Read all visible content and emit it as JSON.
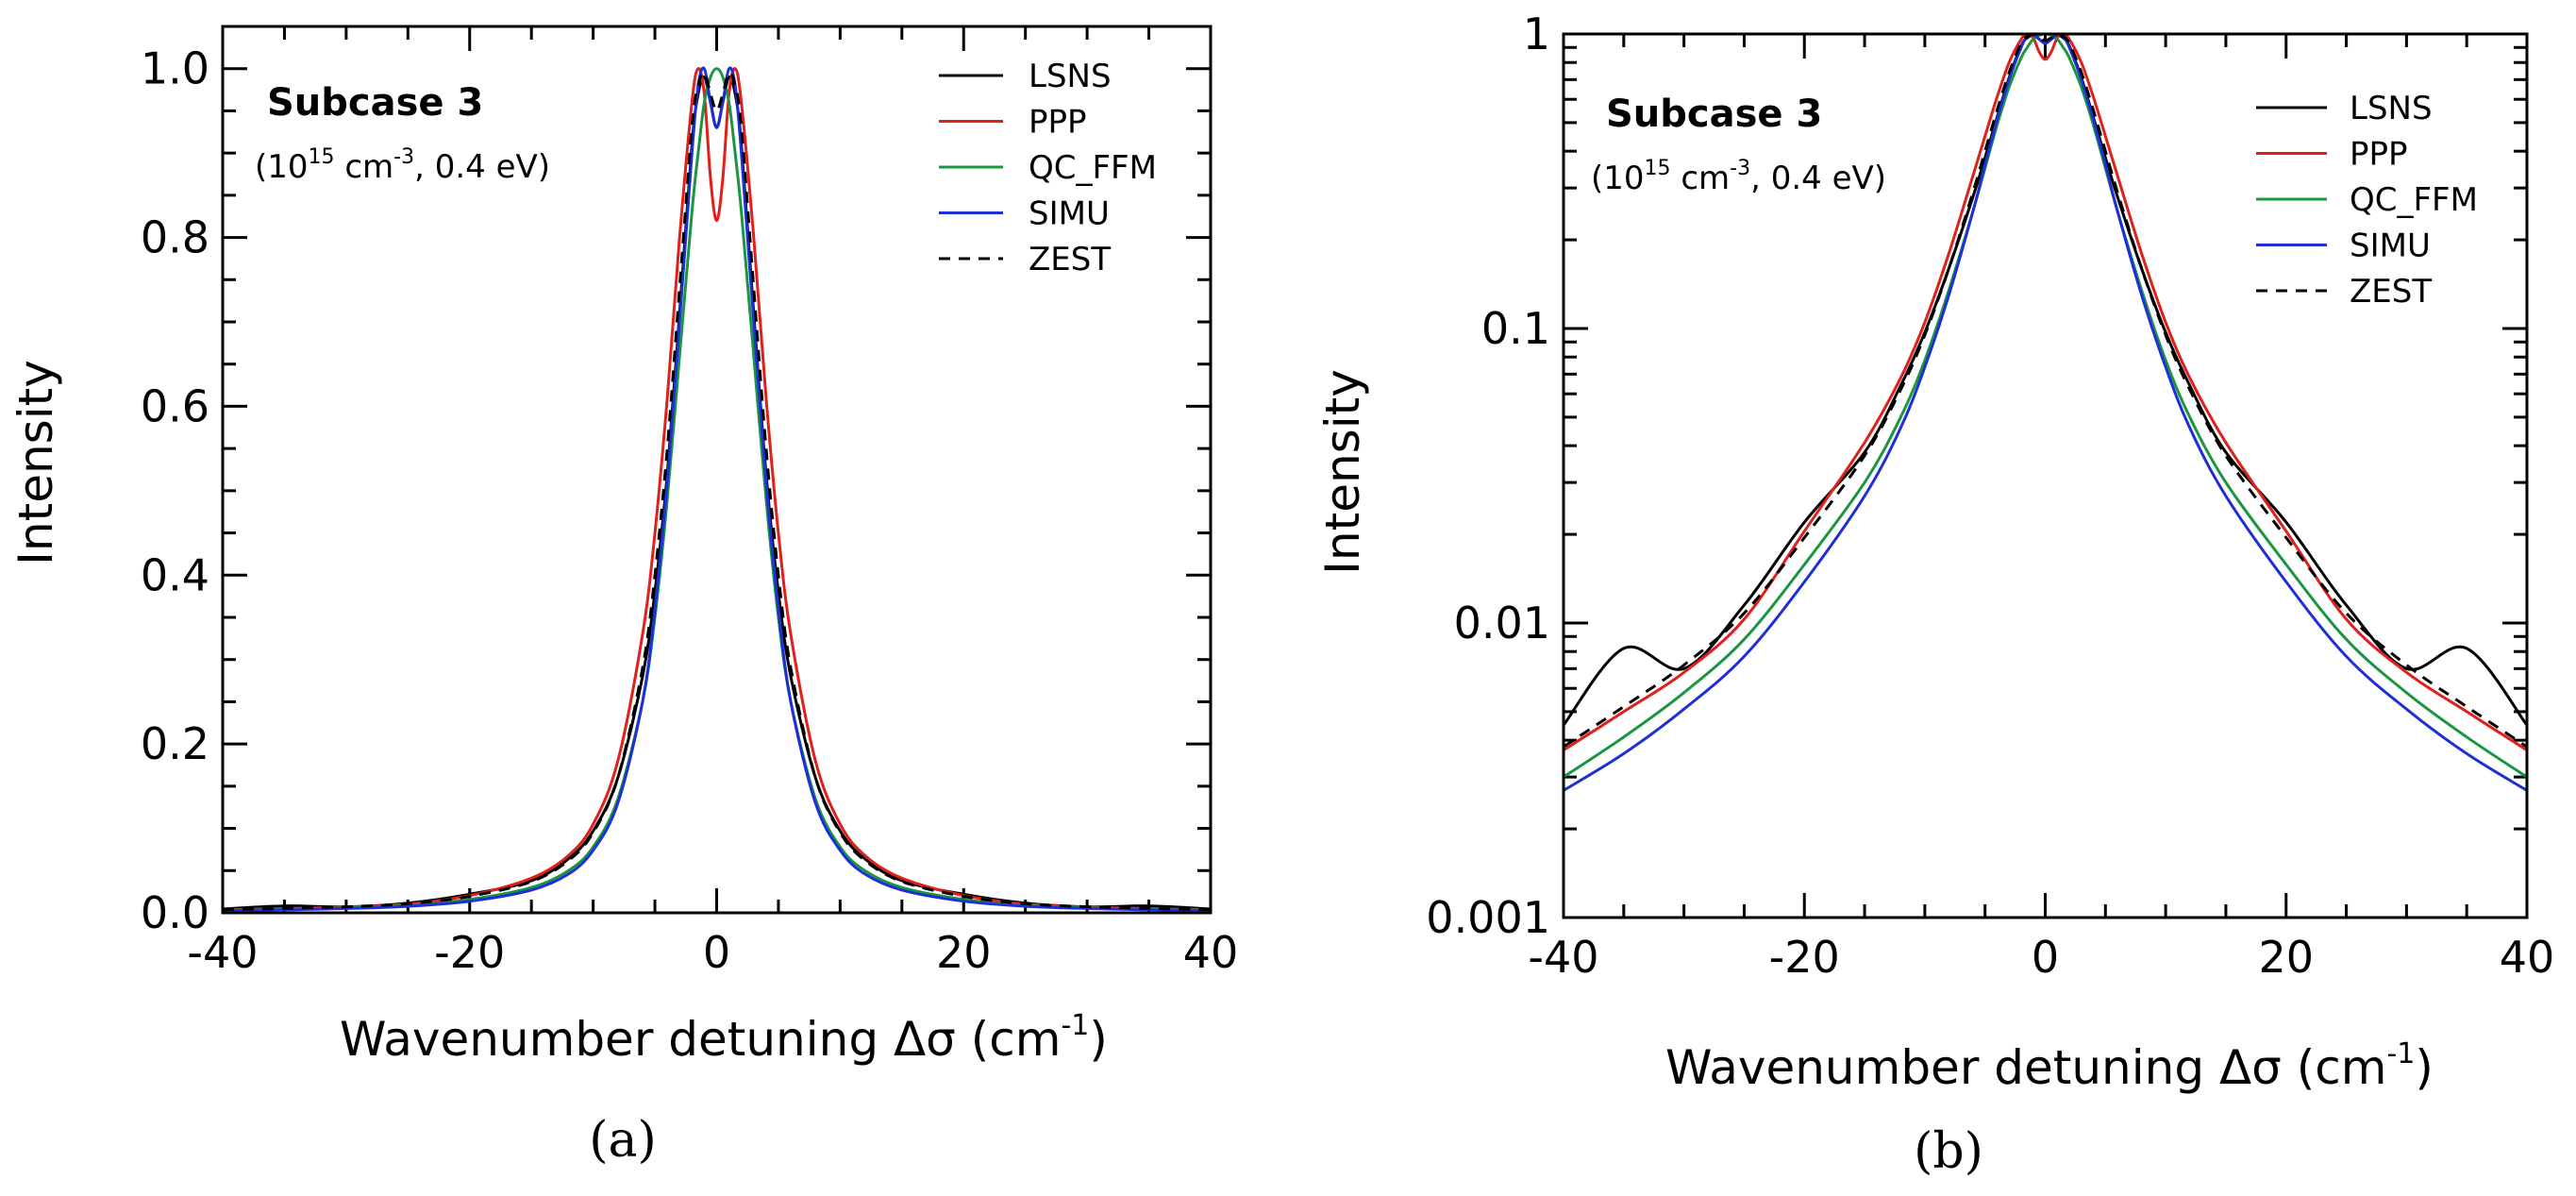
{
  "chart_data": [
    {
      "panel": "(a)",
      "type": "line",
      "yscale": "linear",
      "xlim": [
        -40,
        40
      ],
      "ylim": [
        0,
        1.05
      ],
      "xticks": [
        -40,
        -20,
        0,
        20,
        40
      ],
      "xtick_labels": [
        "-40",
        "-20",
        "0",
        "20",
        "40"
      ],
      "yticks": [
        0,
        0.2,
        0.4,
        0.6,
        0.8,
        1.0
      ],
      "ytick_labels": [
        "0.0",
        "0.2",
        "0.4",
        "0.6",
        "0.8",
        "1.0"
      ],
      "xlabel": "Wavenumber detuning Δσ (cm",
      "xlabel_sup": "-1",
      "xlabel_end": ")",
      "ylabel": "Intensity",
      "subcase": "Subcase 3",
      "condition": {
        "a": "(10",
        "b": "15",
        "c": " cm",
        "d": "-3",
        "e": ", 0.4 eV)"
      },
      "legend": [
        "LSNS",
        "PPP",
        "QC_FFM",
        "SIMU",
        "ZEST"
      ],
      "x": [
        -40,
        -35,
        -30,
        -25,
        -20,
        -15,
        -12,
        -10,
        -8,
        -6,
        -5,
        -4,
        -3,
        -2,
        -1.5,
        -1,
        -0.5,
        0,
        0.5,
        1,
        1.5,
        2,
        3,
        4,
        5,
        6,
        8,
        10,
        12,
        15,
        20,
        25,
        30,
        35,
        40
      ],
      "series": [
        {
          "name": "LSNS",
          "color": "#000000",
          "dash": "",
          "values": [
            0.0045,
            0.0082,
            0.007,
            0.0115,
            0.022,
            0.038,
            0.064,
            0.097,
            0.16,
            0.28,
            0.38,
            0.52,
            0.71,
            0.91,
            0.97,
            0.99,
            0.96,
            0.93,
            0.96,
            0.99,
            0.97,
            0.91,
            0.71,
            0.52,
            0.38,
            0.28,
            0.16,
            0.097,
            0.064,
            0.038,
            0.022,
            0.0115,
            0.007,
            0.0082,
            0.0045
          ]
        },
        {
          "name": "PPP",
          "color": "#e0201b",
          "dash": "",
          "values": [
            0.0037,
            0.005,
            0.0068,
            0.0103,
            0.0205,
            0.041,
            0.068,
            0.105,
            0.18,
            0.33,
            0.45,
            0.61,
            0.8,
            0.96,
            1.0,
            0.97,
            0.87,
            0.82,
            0.87,
            0.97,
            1.0,
            0.96,
            0.8,
            0.61,
            0.45,
            0.33,
            0.18,
            0.105,
            0.068,
            0.041,
            0.0205,
            0.0103,
            0.0068,
            0.005,
            0.0037
          ]
        },
        {
          "name": "QC_FFM",
          "color": "#1a9641",
          "dash": "",
          "values": [
            0.003,
            0.0041,
            0.0058,
            0.0088,
            0.0158,
            0.03,
            0.05,
            0.078,
            0.135,
            0.25,
            0.35,
            0.49,
            0.66,
            0.83,
            0.9,
            0.96,
            0.99,
            1.0,
            0.99,
            0.96,
            0.9,
            0.83,
            0.66,
            0.49,
            0.35,
            0.25,
            0.135,
            0.078,
            0.05,
            0.03,
            0.0158,
            0.0088,
            0.0058,
            0.0041,
            0.003
          ]
        },
        {
          "name": "SIMU",
          "color": "#1f2fd6",
          "dash": "",
          "values": [
            0.0027,
            0.0036,
            0.0051,
            0.0077,
            0.0138,
            0.027,
            0.046,
            0.074,
            0.13,
            0.25,
            0.36,
            0.51,
            0.7,
            0.9,
            0.98,
            1.0,
            0.96,
            0.93,
            0.96,
            1.0,
            0.98,
            0.9,
            0.7,
            0.51,
            0.36,
            0.25,
            0.13,
            0.074,
            0.046,
            0.027,
            0.0138,
            0.0077,
            0.0051,
            0.0036,
            0.0027
          ]
        },
        {
          "name": "ZEST",
          "color": "#000000",
          "dash": "12 9",
          "values": [
            0.0038,
            0.0052,
            0.0072,
            0.0108,
            0.0195,
            0.037,
            0.062,
            0.095,
            0.16,
            0.29,
            0.4,
            0.55,
            0.74,
            0.93,
            0.98,
            0.995,
            0.97,
            0.95,
            0.97,
            0.995,
            0.98,
            0.93,
            0.74,
            0.55,
            0.4,
            0.29,
            0.16,
            0.095,
            0.062,
            0.037,
            0.0195,
            0.0108,
            0.0072,
            0.0052,
            0.0038
          ]
        }
      ]
    },
    {
      "panel": "(b)",
      "type": "line",
      "yscale": "log",
      "xlim": [
        -40,
        40
      ],
      "ylim": [
        0.001,
        1
      ],
      "xticks": [
        -40,
        -20,
        0,
        20,
        40
      ],
      "xtick_labels": [
        "-40",
        "-20",
        "0",
        "20",
        "40"
      ],
      "yticks": [
        0.001,
        0.01,
        0.1,
        1
      ],
      "ytick_labels": [
        "0.001",
        "0.01",
        "0.1",
        "1"
      ],
      "xlabel": "Wavenumber detuning Δσ (cm",
      "xlabel_sup": "-1",
      "xlabel_end": ")",
      "ylabel": "Intensity",
      "subcase": "Subcase 3",
      "condition": {
        "a": "(10",
        "b": "15",
        "c": " cm",
        "d": "-3",
        "e": ", 0.4 eV)"
      },
      "legend": [
        "LSNS",
        "PPP",
        "QC_FFM",
        "SIMU",
        "ZEST"
      ],
      "x": [
        -40,
        -35,
        -30,
        -25,
        -20,
        -15,
        -12,
        -10,
        -8,
        -6,
        -5,
        -4,
        -3,
        -2,
        -1.5,
        -1,
        -0.5,
        0,
        0.5,
        1,
        1.5,
        2,
        3,
        4,
        5,
        6,
        8,
        10,
        12,
        15,
        20,
        25,
        30,
        35,
        40
      ],
      "series": [
        {
          "name": "LSNS",
          "color": "#000000",
          "dash": "",
          "values": [
            0.0045,
            0.0082,
            0.007,
            0.0115,
            0.022,
            0.038,
            0.064,
            0.097,
            0.16,
            0.28,
            0.38,
            0.52,
            0.71,
            0.91,
            0.97,
            0.99,
            0.96,
            0.93,
            0.96,
            0.99,
            0.97,
            0.91,
            0.71,
            0.52,
            0.38,
            0.28,
            0.16,
            0.097,
            0.064,
            0.038,
            0.022,
            0.0115,
            0.007,
            0.0082,
            0.0045
          ]
        },
        {
          "name": "PPP",
          "color": "#e0201b",
          "dash": "",
          "values": [
            0.0037,
            0.005,
            0.0068,
            0.0103,
            0.0205,
            0.041,
            0.068,
            0.105,
            0.18,
            0.33,
            0.45,
            0.61,
            0.8,
            0.96,
            1.0,
            0.97,
            0.87,
            0.82,
            0.87,
            0.97,
            1.0,
            0.96,
            0.8,
            0.61,
            0.45,
            0.33,
            0.18,
            0.105,
            0.068,
            0.041,
            0.0205,
            0.0103,
            0.0068,
            0.005,
            0.0037
          ]
        },
        {
          "name": "QC_FFM",
          "color": "#1a9641",
          "dash": "",
          "values": [
            0.003,
            0.0041,
            0.0058,
            0.0088,
            0.0158,
            0.03,
            0.05,
            0.078,
            0.135,
            0.25,
            0.35,
            0.49,
            0.66,
            0.83,
            0.9,
            0.96,
            0.99,
            1.0,
            0.99,
            0.96,
            0.9,
            0.83,
            0.66,
            0.49,
            0.35,
            0.25,
            0.135,
            0.078,
            0.05,
            0.03,
            0.0158,
            0.0088,
            0.0058,
            0.0041,
            0.003
          ]
        },
        {
          "name": "SIMU",
          "color": "#1f2fd6",
          "dash": "",
          "values": [
            0.0027,
            0.0036,
            0.0051,
            0.0077,
            0.0138,
            0.027,
            0.046,
            0.074,
            0.13,
            0.25,
            0.36,
            0.51,
            0.7,
            0.9,
            0.98,
            1.0,
            0.96,
            0.93,
            0.96,
            1.0,
            0.98,
            0.9,
            0.7,
            0.51,
            0.36,
            0.25,
            0.13,
            0.074,
            0.046,
            0.027,
            0.0138,
            0.0077,
            0.0051,
            0.0036,
            0.0027
          ]
        },
        {
          "name": "ZEST",
          "color": "#000000",
          "dash": "12 9",
          "values": [
            0.0038,
            0.0052,
            0.0072,
            0.0108,
            0.0195,
            0.037,
            0.062,
            0.095,
            0.16,
            0.29,
            0.4,
            0.55,
            0.74,
            0.93,
            0.98,
            0.995,
            0.97,
            0.95,
            0.97,
            0.995,
            0.98,
            0.93,
            0.74,
            0.55,
            0.4,
            0.29,
            0.16,
            0.095,
            0.062,
            0.037,
            0.0195,
            0.0108,
            0.0072,
            0.0052,
            0.0038
          ]
        }
      ]
    }
  ]
}
